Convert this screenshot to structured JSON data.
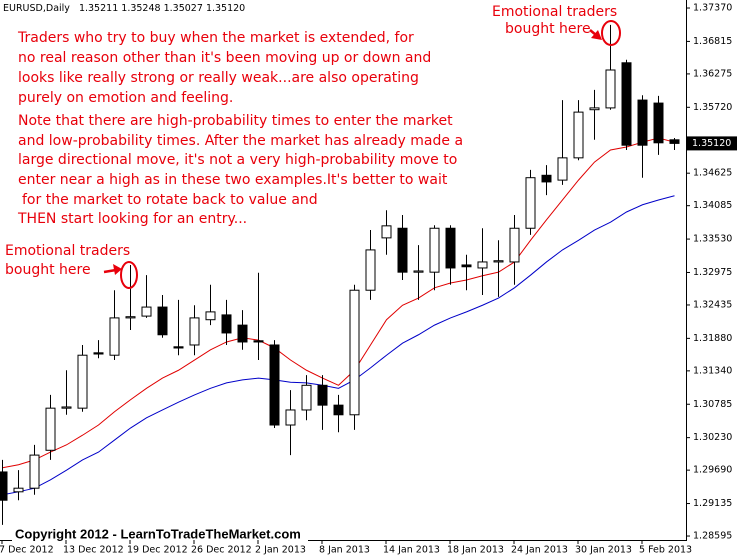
{
  "chart_data": {
    "type": "candlestick",
    "symbol": "EURUSD,Daily",
    "header_values": [
      "1.35211",
      "1.35248",
      "1.35027",
      "1.35120"
    ],
    "categories": [
      "7 Dec 2012",
      null,
      null,
      null,
      "13 Dec 2012",
      null,
      null,
      null,
      "19 Dec 2012",
      null,
      null,
      null,
      "26 Dec 2012",
      null,
      null,
      null,
      "2 Jan 2013",
      null,
      null,
      null,
      "8 Jan 2013",
      null,
      null,
      null,
      "14 Jan 2013",
      null,
      null,
      null,
      "18 Jan 2013",
      null,
      null,
      null,
      "24 Jan 2013",
      null,
      null,
      null,
      "30 Jan 2013",
      null,
      null,
      null,
      "5 Feb 2013",
      null,
      null
    ],
    "open": [
      1.2966,
      1.2933,
      1.2939,
      1.3002,
      1.3072,
      1.3072,
      1.3164,
      1.316,
      1.3222,
      1.3225,
      1.324,
      1.3174,
      1.3177,
      1.3219,
      1.3227,
      1.321,
      1.3184,
      1.3177,
      1.3044,
      1.3069,
      1.311,
      1.3077,
      1.3061,
      1.3268,
      1.3355,
      1.3371,
      1.3298,
      1.3298,
      1.3371,
      1.331,
      1.3305,
      1.3315,
      1.3315,
      1.3371,
      1.3459,
      1.3451,
      1.3488,
      1.3568,
      1.3571,
      1.3646,
      1.3584,
      1.3579,
      1.3518
    ],
    "high": [
      1.2986,
      1.2969,
      1.3011,
      1.3094,
      1.3135,
      1.3177,
      1.3185,
      1.3268,
      1.331,
      1.3293,
      1.326,
      1.3252,
      1.3243,
      1.3277,
      1.3252,
      1.3235,
      1.3297,
      1.3185,
      1.3102,
      1.3127,
      1.3127,
      1.3094,
      1.3277,
      1.3368,
      1.3401,
      1.3393,
      1.3343,
      1.3376,
      1.3376,
      1.3327,
      1.3371,
      1.3351,
      1.3393,
      1.3468,
      1.3476,
      1.3584,
      1.3584,
      1.3601,
      1.3709,
      1.3651,
      1.3592,
      1.3591,
      1.3521
    ],
    "low": [
      1.2878,
      1.2919,
      1.2928,
      1.2986,
      1.3061,
      1.3066,
      1.3155,
      1.3152,
      1.3202,
      1.3222,
      1.3189,
      1.316,
      1.316,
      1.321,
      1.3177,
      1.3169,
      1.3152,
      1.3039,
      1.2994,
      1.3052,
      1.3036,
      1.3032,
      1.3036,
      1.3252,
      1.3327,
      1.3285,
      1.3252,
      1.3268,
      1.3277,
      1.3268,
      1.326,
      1.3257,
      1.3277,
      1.336,
      1.3426,
      1.3443,
      1.3484,
      1.3518,
      1.3568,
      1.3501,
      1.3455,
      1.3493,
      1.3501
    ],
    "close": [
      1.2919,
      1.2939,
      1.2994,
      1.3072,
      1.3074,
      1.316,
      1.3162,
      1.3222,
      1.3224,
      1.324,
      1.3194,
      1.3172,
      1.3222,
      1.3232,
      1.3197,
      1.3182,
      1.3182,
      1.3044,
      1.3069,
      1.311,
      1.3077,
      1.3061,
      1.3268,
      1.3335,
      1.3375,
      1.3298,
      1.33,
      1.3371,
      1.3305,
      1.3307,
      1.3315,
      1.3317,
      1.3371,
      1.3455,
      1.3448,
      1.3488,
      1.3564,
      1.3571,
      1.3634,
      1.3509,
      1.3509,
      1.3513,
      1.3512
    ],
    "moving_averages": [
      {
        "color": "#e00000",
        "values": [
          1.2973,
          1.2978,
          1.2986,
          1.2999,
          1.3011,
          1.3027,
          1.3044,
          1.3066,
          1.3086,
          1.3105,
          1.3122,
          1.3135,
          1.3152,
          1.3169,
          1.3182,
          1.3189,
          1.3185,
          1.3172,
          1.3152,
          1.3135,
          1.3122,
          1.311,
          1.3135,
          1.3177,
          1.3219,
          1.3243,
          1.3255,
          1.3272,
          1.328,
          1.3285,
          1.3292,
          1.3298,
          1.3315,
          1.3351,
          1.3385,
          1.3418,
          1.3451,
          1.3481,
          1.3501,
          1.3506,
          1.3514,
          1.3521,
          1.3514
        ]
      },
      {
        "color": "#0000c8",
        "values": [
          1.2928,
          1.2933,
          1.2939,
          1.2953,
          1.2969,
          1.2986,
          1.2999,
          1.3019,
          1.3039,
          1.3056,
          1.3069,
          1.3082,
          1.3094,
          1.3105,
          1.3114,
          1.3119,
          1.3122,
          1.3119,
          1.3115,
          1.3114,
          1.311,
          1.3105,
          1.3119,
          1.3139,
          1.316,
          1.318,
          1.3194,
          1.321,
          1.3222,
          1.3232,
          1.3243,
          1.3255,
          1.3272,
          1.3293,
          1.3315,
          1.3335,
          1.3351,
          1.3368,
          1.3381,
          1.3398,
          1.341,
          1.3418,
          1.3425
        ]
      }
    ],
    "ylim": [
      1.28529,
      1.3747
    ],
    "yticks": [
      {
        "value": 1.3737,
        "label": "1.37370"
      },
      1.36815,
      1.36275,
      {
        "value": 1.3572,
        "label": "1.35720"
      },
      1.34625,
      1.34085,
      {
        "value": 1.3353,
        "label": "1.33530"
      },
      1.32975,
      1.32435,
      {
        "value": 1.3188,
        "label": "1.31880"
      },
      {
        "value": 1.3134,
        "label": "1.31340"
      },
      1.30785,
      {
        "value": 1.3023,
        "label": "1.30230"
      },
      {
        "value": 1.2969,
        "label": "1.29690"
      },
      1.29135,
      1.28595
    ],
    "price_marker": {
      "value": 1.3512,
      "label": "1.35120"
    },
    "grid": false,
    "bull_color": "#ffffff",
    "bear_color": "#000000",
    "note": {
      "paragraph_1": [
        "Traders who try to buy when the market is extended, for",
        "no real reason other than it's been moving up or down and",
        "looks like really strong or really weak...are also operating",
        "purely on emotion and feeling."
      ],
      "paragraph_2": [
        "Note that there are high-probability times to enter the market",
        "and low-probability times. After the market has already made a",
        "large directional move, it's not a very high-probability move to",
        "enter near a high as in these two examples.It's better to wait",
        "for the market to rotate back to value and",
        "THEN start looking for an entry..."
      ]
    },
    "callouts": [
      [
        "Emotional traders",
        "bought here"
      ],
      [
        "Emotional traders",
        "bought here"
      ]
    ],
    "copyright": "Copyright 2012 - LearnToTradeTheMarket.com"
  }
}
